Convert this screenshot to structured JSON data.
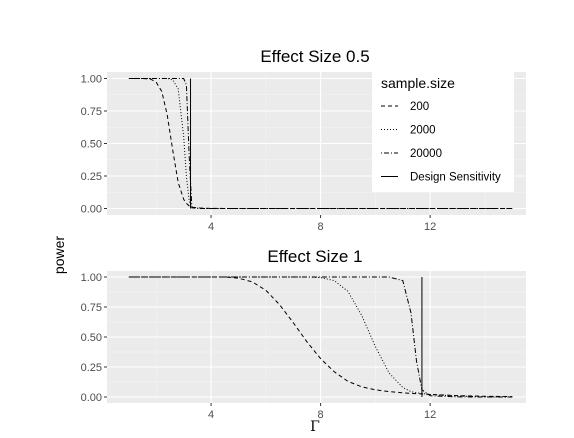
{
  "chart_data": [
    {
      "type": "line",
      "title": "Effect Size 0.5",
      "xlim": [
        0.2,
        15.5
      ],
      "ylim": [
        -0.05,
        1.05
      ],
      "x_ticks": [
        4,
        8,
        12
      ],
      "y_ticks": [
        0.0,
        0.25,
        0.5,
        0.75,
        1.0
      ],
      "y_tick_labels": [
        "0.00",
        "0.25",
        "0.50",
        "0.75",
        "1.00"
      ],
      "x": [
        1,
        1.5,
        1.8,
        2,
        2.2,
        2.4,
        2.6,
        2.8,
        3,
        3.1,
        3.2,
        3.3,
        3.6,
        4,
        5,
        6,
        8,
        10,
        12,
        14,
        15
      ],
      "series": [
        {
          "name": "200",
          "values": [
            1,
            1,
            0.995,
            0.97,
            0.9,
            0.72,
            0.45,
            0.2,
            0.07,
            0.04,
            0.02,
            0.01,
            0.004,
            0.001,
            0,
            0,
            0,
            0,
            0,
            0,
            0
          ]
        },
        {
          "name": "2000",
          "values": [
            1,
            1,
            1,
            1,
            1,
            1,
            0.99,
            0.92,
            0.55,
            0.25,
            0.06,
            0.005,
            0.001,
            0,
            0,
            0,
            0,
            0,
            0,
            0,
            0
          ]
        },
        {
          "name": "20000",
          "values": [
            1,
            1,
            1,
            1,
            1,
            1,
            1,
            1,
            1,
            0.95,
            0.4,
            0.005,
            0,
            0,
            0,
            0,
            0,
            0,
            0,
            0,
            0
          ]
        }
      ],
      "design_sensitivity": 3.25
    },
    {
      "type": "line",
      "title": "Effect Size 1",
      "xlim": [
        0.2,
        15.5
      ],
      "ylim": [
        -0.05,
        1.05
      ],
      "x_ticks": [
        4,
        8,
        12
      ],
      "y_ticks": [
        0.0,
        0.25,
        0.5,
        0.75,
        1.0
      ],
      "y_tick_labels": [
        "0.00",
        "0.25",
        "0.50",
        "0.75",
        "1.00"
      ],
      "x": [
        1,
        3,
        4.5,
        5,
        5.5,
        6,
        6.5,
        7,
        7.5,
        8,
        8.5,
        9,
        9.5,
        10,
        10.5,
        11,
        11.3,
        11.5,
        11.7,
        12,
        13,
        14,
        15
      ],
      "series": [
        {
          "name": "200",
          "values": [
            1,
            1,
            1,
            0.99,
            0.96,
            0.89,
            0.77,
            0.62,
            0.46,
            0.32,
            0.21,
            0.13,
            0.085,
            0.06,
            0.045,
            0.035,
            0.03,
            0.028,
            0.026,
            0.022,
            0.012,
            0.006,
            0.003
          ]
        },
        {
          "name": "2000",
          "values": [
            1,
            1,
            1,
            1,
            1,
            1,
            1,
            1,
            1,
            0.995,
            0.97,
            0.88,
            0.68,
            0.42,
            0.2,
            0.08,
            0.045,
            0.035,
            0.03,
            0.02,
            0.008,
            0.002,
            0
          ]
        },
        {
          "name": "20000",
          "values": [
            1,
            1,
            1,
            1,
            1,
            1,
            1,
            1,
            1,
            1,
            1,
            1,
            1,
            1,
            1,
            0.97,
            0.7,
            0.3,
            0.06,
            0.01,
            0.001,
            0,
            0
          ]
        }
      ],
      "design_sensitivity": 11.7
    }
  ],
  "shared": {
    "xlabel": "Γ",
    "ylabel": "power",
    "legend": {
      "title": "sample.size",
      "position": "top-right",
      "entries": [
        {
          "label": "200",
          "style": "dashed"
        },
        {
          "label": "2000",
          "style": "dotted"
        },
        {
          "label": "20000",
          "style": "dotdash"
        },
        {
          "label": "Design Sensitivity",
          "style": "solid"
        }
      ]
    },
    "grid": true,
    "colors": {
      "panel": "#ebebeb",
      "grid_major": "#ffffff",
      "line": "#000000",
      "tick_text": "#4d4d4d"
    }
  }
}
